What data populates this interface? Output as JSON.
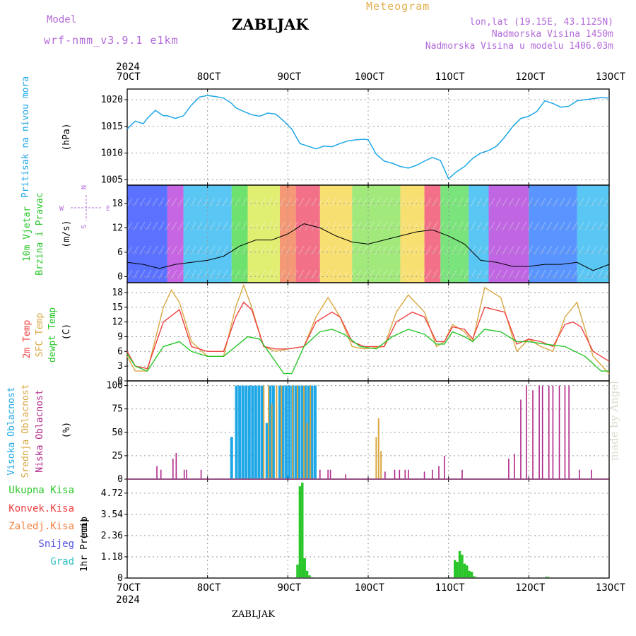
{
  "header": {
    "model_label": "Model",
    "model_name": "wrf-nmm_v3.9.1 e1km",
    "title": "ZABLJAK",
    "meteogram_label": "Meteogram",
    "coords": "lon,lat (19.15E, 43.1125N)",
    "elevation": "Nadmorska Visina 1450m",
    "elevation_model": "Nadmorska Visina u modelu 1406.03m"
  },
  "footer": {
    "title": "ZABLJAK",
    "credit": "made by Angel"
  },
  "colors": {
    "pressure": "#1ea7e6",
    "temp2m": "#ef4040",
    "sfc": "#d9a741",
    "dew": "#28c628",
    "high_cloud": "#1ea7e6",
    "mid_cloud": "#d9a741",
    "low_cloud": "#b0258a",
    "precip": "#28c628",
    "purple": "#b36ad9"
  },
  "chart_data": [
    {
      "type": "line",
      "title": "",
      "ylabel": "Pritisak na nivou mora",
      "unit": "(hPa)",
      "ylim": [
        1004,
        1022
      ],
      "yticks": [
        1005,
        1010,
        1015,
        1020
      ],
      "x_ticks": [
        "7OCT",
        "8OCT",
        "9OCT",
        "10OCT",
        "11OCT",
        "12OCT",
        "13OCT"
      ],
      "year": "2024",
      "grid": true,
      "series": [
        {
          "name": "Pritisak na nivou mora",
          "x": [
            0,
            0.1,
            0.2,
            0.25,
            0.35,
            0.45,
            0.5,
            0.6,
            0.7,
            0.8,
            0.9,
            1.0,
            1.1,
            1.2,
            1.3,
            1.35,
            1.45,
            1.55,
            1.65,
            1.75,
            1.85,
            1.95,
            2.05,
            2.15,
            2.25,
            2.35,
            2.45,
            2.55,
            2.65,
            2.75,
            2.85,
            2.95,
            3.0,
            3.1,
            3.2,
            3.3,
            3.4,
            3.5,
            3.6,
            3.7,
            3.8,
            3.9,
            4.0,
            4.1,
            4.2,
            4.3,
            4.4,
            4.5,
            4.6,
            4.7,
            4.8,
            4.9,
            5.0,
            5.1,
            5.2,
            5.3,
            5.4,
            5.5,
            5.6,
            5.7,
            5.8,
            5.9,
            6.0
          ],
          "values": [
            1014.5,
            1016,
            1015.5,
            1016.5,
            1018,
            1017,
            1017,
            1016.5,
            1017,
            1019,
            1020.5,
            1020.8,
            1020.6,
            1020.3,
            1019.3,
            1018.5,
            1017.8,
            1017.2,
            1016.9,
            1017.5,
            1017.3,
            1016,
            1014.5,
            1011.8,
            1011.3,
            1010.8,
            1011.3,
            1011.2,
            1011.8,
            1012.3,
            1012.5,
            1012.6,
            1012.5,
            1009.8,
            1008.5,
            1008.1,
            1007.5,
            1007.2,
            1007.7,
            1008.5,
            1009.2,
            1008.6,
            1005.2,
            1006.5,
            1007.5,
            1009,
            1010,
            1010.5,
            1011.3,
            1013,
            1015,
            1016.5,
            1016.9,
            1017.8,
            1019.8,
            1019.3,
            1018.6,
            1018.8,
            1019.8,
            1020,
            1020.2,
            1020.4,
            1020.3
          ]
        }
      ]
    },
    {
      "type": "line",
      "title": "",
      "ylabel": "10m Vjetar Brzina i Pravac",
      "unit": "(m/s)",
      "ylim": [
        -1.5,
        22.5
      ],
      "yticks": [
        0,
        6,
        12,
        18
      ],
      "compass_labels": [
        "N",
        "W",
        "E",
        "S"
      ],
      "grid": true,
      "series": [
        {
          "name": "10m Vjetar Brzina",
          "x": [
            0,
            0.2,
            0.4,
            0.6,
            0.8,
            1.0,
            1.2,
            1.4,
            1.6,
            1.8,
            2.0,
            2.2,
            2.4,
            2.6,
            2.8,
            3.0,
            3.2,
            3.4,
            3.6,
            3.8,
            4.0,
            4.2,
            4.4,
            4.6,
            4.8,
            5.0,
            5.2,
            5.4,
            5.6,
            5.8,
            6.0
          ],
          "values": [
            3.5,
            3,
            2,
            3,
            3.5,
            4,
            5,
            7.5,
            9,
            9,
            10.5,
            13,
            12,
            10,
            8.5,
            8,
            9,
            10,
            11,
            11.5,
            10,
            8,
            4,
            3.5,
            2.5,
            2.5,
            3,
            3,
            3.5,
            1.5,
            3
          ]
        }
      ]
    },
    {
      "type": "line",
      "title": "",
      "ylabel": "2m Temp / SFC Temp / dewpt Temp",
      "unit": "(C)",
      "ylim": [
        0,
        20
      ],
      "yticks": [
        0,
        3,
        6,
        9,
        12,
        15,
        18
      ],
      "grid": true,
      "series": [
        {
          "name": "2m Temp",
          "x": [
            0,
            0.1,
            0.25,
            0.45,
            0.65,
            0.8,
            1.0,
            1.2,
            1.35,
            1.45,
            1.55,
            1.7,
            1.85,
            2.0,
            2.2,
            2.35,
            2.55,
            2.65,
            2.8,
            2.95,
            3.2,
            3.35,
            3.55,
            3.7,
            3.85,
            3.95,
            4.05,
            4.2,
            4.3,
            4.45,
            4.7,
            4.85,
            5.0,
            5.15,
            5.3,
            5.45,
            5.55,
            5.65,
            5.8,
            6.0
          ],
          "values": [
            6,
            3,
            2.5,
            12,
            14.5,
            7,
            6,
            6,
            13,
            16,
            14.5,
            7,
            6.5,
            6.5,
            7,
            12,
            14,
            13,
            8,
            7,
            7,
            12,
            14,
            13,
            8,
            8,
            11,
            10.5,
            8.5,
            15,
            14,
            7.5,
            8.5,
            8,
            7,
            11.5,
            12,
            11,
            6,
            4
          ]
        },
        {
          "name": "SFC Temp",
          "x": [
            0,
            0.1,
            0.25,
            0.45,
            0.55,
            0.65,
            0.8,
            1.0,
            1.2,
            1.35,
            1.45,
            1.55,
            1.7,
            1.85,
            2.0,
            2.2,
            2.35,
            2.5,
            2.65,
            2.8,
            2.95,
            3.2,
            3.35,
            3.5,
            3.7,
            3.85,
            3.95,
            4.05,
            4.2,
            4.3,
            4.45,
            4.65,
            4.85,
            5.0,
            5.15,
            5.3,
            5.45,
            5.6,
            5.8,
            6.0
          ],
          "values": [
            5,
            2,
            2,
            15,
            18.5,
            16,
            8,
            5,
            5,
            15,
            19.5,
            15,
            7,
            6,
            6.5,
            7,
            13,
            17,
            13,
            7,
            6.5,
            7,
            14,
            17.5,
            14,
            7,
            8,
            11.5,
            10,
            8,
            19,
            17,
            6,
            8.5,
            7,
            6,
            13,
            16,
            5,
            1.5
          ]
        },
        {
          "name": "dewpt Temp",
          "x": [
            0,
            0.1,
            0.25,
            0.45,
            0.65,
            0.8,
            1.0,
            1.2,
            1.35,
            1.5,
            1.65,
            1.8,
            1.95,
            2.05,
            2.2,
            2.4,
            2.55,
            2.7,
            2.9,
            3.1,
            3.3,
            3.5,
            3.7,
            3.85,
            3.95,
            4.05,
            4.2,
            4.3,
            4.45,
            4.65,
            4.85,
            5.0,
            5.2,
            5.45,
            5.7,
            5.9,
            6.0
          ],
          "values": [
            5.5,
            3,
            2,
            7,
            8,
            6,
            5,
            5,
            7,
            9,
            8.5,
            5,
            1.5,
            1.5,
            7,
            10,
            10.5,
            9.5,
            7,
            6.5,
            9,
            10.5,
            9.5,
            7.5,
            7.5,
            10,
            9,
            8,
            10.5,
            10,
            8,
            8,
            7.5,
            7,
            5,
            2,
            2
          ]
        }
      ]
    },
    {
      "type": "bar",
      "title": "",
      "ylabel": "Visoka Oblacnost / Srednja Oblacnost / Niska Oblacnost",
      "unit": "(%)",
      "ylim": [
        0,
        105
      ],
      "yticks": [
        0,
        25,
        50,
        75,
        100
      ],
      "grid": true,
      "series": [
        {
          "name": "Visoka Oblacnost",
          "x": [
            1.3,
            1.36,
            1.4,
            1.44,
            1.48,
            1.52,
            1.56,
            1.6,
            1.64,
            1.68,
            1.74,
            1.78,
            1.82,
            1.9,
            1.94,
            1.98,
            2.02,
            2.06,
            2.1,
            2.14,
            2.18,
            2.22,
            2.26,
            2.3,
            2.34
          ],
          "values": [
            45,
            100,
            100,
            100,
            100,
            100,
            100,
            100,
            100,
            100,
            60,
            100,
            100,
            100,
            100,
            100,
            100,
            100,
            100,
            100,
            100,
            100,
            100,
            100,
            100
          ]
        },
        {
          "name": "Srednja Oblacnost",
          "x": [
            1.7,
            1.76,
            1.8,
            1.86,
            1.92,
            2.06,
            2.12,
            2.2,
            2.24,
            2.28,
            3.1,
            3.13,
            3.16
          ],
          "values": [
            100,
            100,
            80,
            100,
            100,
            100,
            100,
            100,
            60,
            100,
            45,
            65,
            30
          ]
        },
        {
          "name": "Niska Oblacnost",
          "x": [
            0.37,
            0.42,
            0.57,
            0.61,
            0.71,
            0.74,
            0.92,
            2.4,
            2.5,
            2.53,
            2.72,
            3.21,
            3.33,
            3.39,
            3.46,
            3.5,
            3.7,
            3.8,
            3.88,
            3.95,
            4.17,
            4.75,
            4.82,
            4.9,
            4.97,
            5.05,
            5.13,
            5.17,
            5.25,
            5.3,
            5.38,
            5.45,
            5.5,
            5.63,
            5.78
          ],
          "values": [
            14,
            10,
            22,
            28,
            10,
            10,
            10,
            10,
            10,
            10,
            5,
            8,
            10,
            10,
            10,
            10,
            8,
            10,
            14,
            25,
            10,
            22,
            27,
            85,
            100,
            95,
            100,
            100,
            100,
            100,
            100,
            100,
            100,
            10,
            10
          ]
        }
      ]
    },
    {
      "type": "bar",
      "title": "",
      "ylabel": "1hr Precip",
      "unit": "(mm)",
      "ylim": [
        0,
        5.5
      ],
      "yticks": [
        0,
        1.18,
        2.36,
        3.54,
        4.72
      ],
      "legend": [
        "Ukupna Kisa",
        "Konvek.Kisa",
        "Zaledj.Kisa",
        "Snijeg",
        "Grad"
      ],
      "x_ticks_bottom": [
        "7OCT",
        "8OCT",
        "9OCT",
        "10OCT",
        "11OCT",
        "12OCT",
        "13OCT"
      ],
      "year": "2024",
      "grid": true,
      "series": [
        {
          "name": "Ukupna Kisa",
          "x": [
            2.12,
            2.15,
            2.18,
            2.21,
            2.24,
            2.27,
            2.3,
            4.08,
            4.11,
            4.14,
            4.17,
            4.2,
            4.23,
            4.26,
            4.29,
            4.32,
            4.35,
            4.38,
            4.41,
            5.22,
            5.25
          ],
          "values": [
            0.75,
            5.1,
            5.3,
            1.1,
            0.4,
            0.15,
            0.05,
            1.0,
            0.9,
            1.5,
            1.3,
            0.8,
            0.7,
            0.4,
            0.35,
            0.1,
            0.05,
            0.04,
            0.03,
            0.08,
            0.06
          ]
        }
      ]
    }
  ]
}
